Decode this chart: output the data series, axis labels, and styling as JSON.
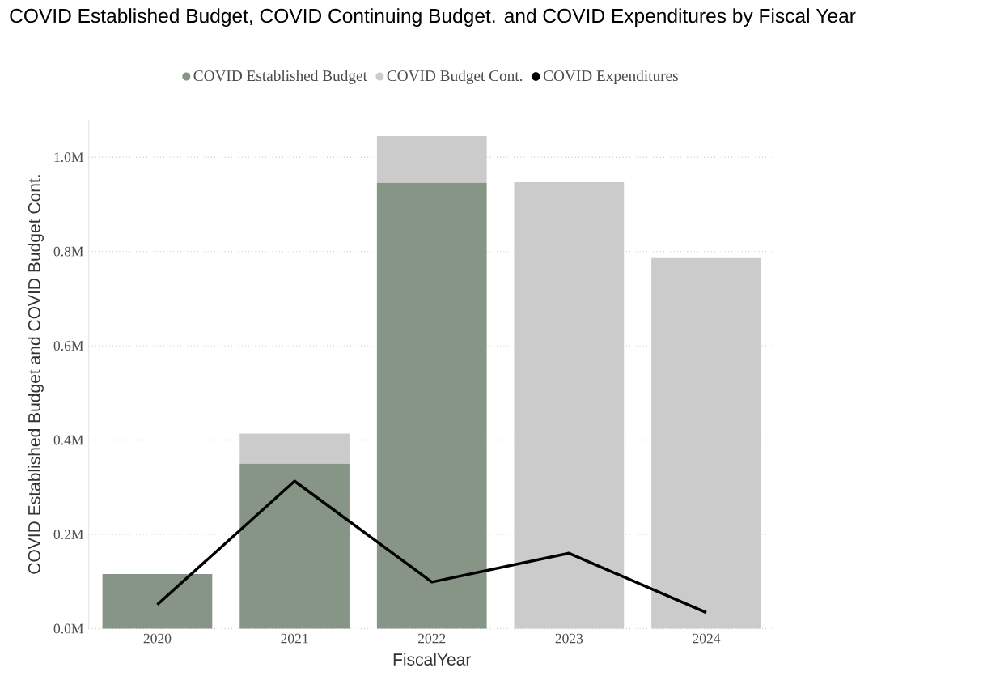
{
  "chart_data": {
    "type": "bar",
    "title": "COVID Established Budget, COVID Continuing Budget. and COVID Expenditures by Fiscal Year",
    "xlabel": "FiscalYear",
    "ylabel": "COVID Established Budget and COVID Budget Cont.",
    "categories": [
      "2020",
      "2021",
      "2022",
      "2023",
      "2024"
    ],
    "stacked": true,
    "series": [
      {
        "name": "COVID Established Budget",
        "color": "#879586",
        "values": [
          0.116,
          0.35,
          0.946,
          null,
          null
        ]
      },
      {
        "name": "COVID Budget Cont.",
        "color": "#cbcbcb",
        "values": [
          null,
          0.064,
          0.099,
          0.947,
          0.786
        ]
      },
      {
        "name": "COVID Expenditures",
        "type": "line",
        "color": "#000000",
        "values": [
          0.051,
          0.313,
          0.099,
          0.16,
          0.034
        ]
      }
    ],
    "ylim": [
      0,
      1.08
    ],
    "yticks": [
      {
        "value": 0,
        "label": "0.0M"
      },
      {
        "value": 0.2,
        "label": "0.2M"
      },
      {
        "value": 0.4,
        "label": "0.4M"
      },
      {
        "value": 0.6,
        "label": "0.6M"
      },
      {
        "value": 0.8,
        "label": "0.8M"
      },
      {
        "value": 1.0,
        "label": "1.0M"
      }
    ],
    "grid": "y",
    "legend": "top",
    "marker": "none"
  }
}
